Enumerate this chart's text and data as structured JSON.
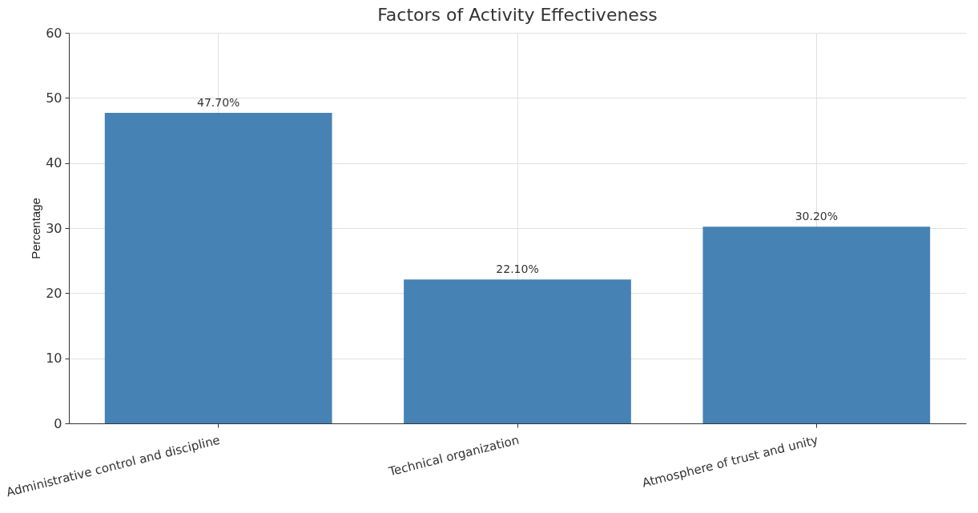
{
  "chart_data": {
    "type": "bar",
    "title": "Factors of Activity Effectiveness",
    "ylabel": "Percentage",
    "categories": [
      "Administrative control and discipline",
      "Technical organization",
      "Atmosphere of trust and unity"
    ],
    "values": [
      47.7,
      22.1,
      30.2
    ],
    "value_labels": [
      "47.70%",
      "22.10%",
      "30.20%"
    ],
    "color": "#4682b4",
    "ylim": [
      0,
      60
    ],
    "yticks": [
      0,
      10,
      20,
      30,
      40,
      50,
      60
    ],
    "grid": true
  }
}
